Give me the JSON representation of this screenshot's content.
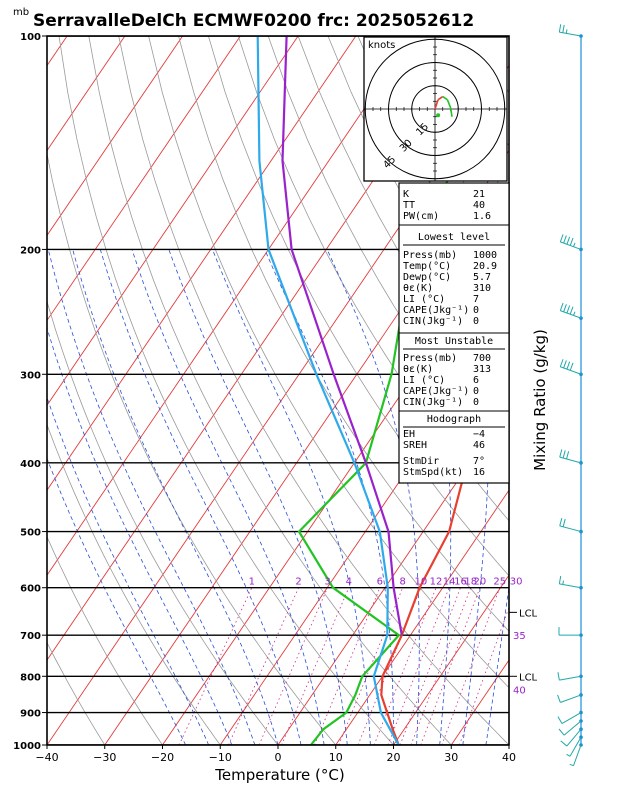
{
  "chart_data": {
    "type": "line",
    "title": "SerravalleDelCh ECMWF0200 frc: 2025052612",
    "pressure_unit": "mb",
    "xlabel": "Temperature (°C)",
    "right_label": "Mixing Ratio (g/kg)",
    "xlim": [
      -40,
      40
    ],
    "ylim": [
      1000,
      100
    ],
    "x_ticks": [
      "−40",
      "−30",
      "−20",
      "−10",
      "0",
      "10",
      "20",
      "30",
      "40"
    ],
    "p_levels": [
      100,
      200,
      300,
      400,
      500,
      600,
      700,
      800,
      900,
      1000
    ],
    "p_labels": [
      "100",
      "200",
      "300",
      "400",
      "500",
      "600",
      "700",
      "800",
      "900",
      "1000"
    ],
    "mixing_ratio_labels": [
      "1",
      "2",
      "3",
      "4",
      "6",
      "8",
      "10",
      "12",
      "14",
      "16",
      "18",
      "20",
      "25",
      "30"
    ],
    "mixing_ratio_values": [
      1,
      2,
      3,
      4,
      6,
      8,
      10,
      12,
      14,
      16,
      18,
      20,
      25,
      30
    ],
    "right_markers": [
      {
        "p": 650,
        "label": "LCL"
      },
      {
        "p": 700,
        "label": "35"
      },
      {
        "p": 800,
        "label": "LCL"
      },
      {
        "p": 835,
        "label": "40"
      }
    ],
    "series": [
      {
        "name": "",
        "color": "#e84030",
        "points": [
          [
            1000,
            20.9
          ],
          [
            950,
            18
          ],
          [
            850,
            12
          ],
          [
            800,
            10
          ],
          [
            700,
            8.5
          ],
          [
            600,
            6
          ],
          [
            500,
            4.5
          ],
          [
            400,
            -0.5
          ],
          [
            300,
            -12
          ],
          [
            250,
            -19
          ],
          [
            220,
            -19
          ],
          [
            200,
            -17
          ],
          [
            150,
            -10
          ],
          [
            100,
            -3
          ]
        ]
      },
      {
        "name": "",
        "color": "#22c322",
        "points": [
          [
            1000,
            5.7
          ],
          [
            950,
            6
          ],
          [
            900,
            8
          ],
          [
            850,
            7.5
          ],
          [
            800,
            6.5
          ],
          [
            700,
            8
          ],
          [
            600,
            -9
          ],
          [
            500,
            -21.5
          ],
          [
            400,
            -18
          ],
          [
            300,
            -24
          ],
          [
            250,
            -29
          ],
          [
            200,
            -34
          ],
          [
            150,
            -38
          ],
          [
            100,
            -47
          ]
        ]
      },
      {
        "name": "",
        "color": "#2eaaea",
        "points": [
          [
            1000,
            20.9
          ],
          [
            900,
            14
          ],
          [
            800,
            8.5
          ],
          [
            700,
            6
          ],
          [
            600,
            0.5
          ],
          [
            500,
            -7.5
          ],
          [
            400,
            -20
          ],
          [
            300,
            -37
          ],
          [
            200,
            -60
          ],
          [
            150,
            -72
          ],
          [
            100,
            -87
          ]
        ]
      },
      {
        "name": "",
        "color": "#9a22cc",
        "points": [
          [
            700,
            8.5
          ],
          [
            600,
            1.5
          ],
          [
            500,
            -6
          ],
          [
            400,
            -18
          ],
          [
            300,
            -34
          ],
          [
            200,
            -56
          ],
          [
            150,
            -68
          ],
          [
            100,
            -82
          ]
        ]
      }
    ],
    "wind_barbs": [
      {
        "p": 1000,
        "dir": 200,
        "kt": 5
      },
      {
        "p": 975,
        "dir": 210,
        "kt": 8
      },
      {
        "p": 950,
        "dir": 220,
        "kt": 10
      },
      {
        "p": 925,
        "dir": 230,
        "kt": 10
      },
      {
        "p": 900,
        "dir": 240,
        "kt": 12
      },
      {
        "p": 850,
        "dir": 250,
        "kt": 12
      },
      {
        "p": 800,
        "dir": 260,
        "kt": 14
      },
      {
        "p": 700,
        "dir": 270,
        "kt": 12
      },
      {
        "p": 600,
        "dir": 280,
        "kt": 15
      },
      {
        "p": 500,
        "dir": 285,
        "kt": 20
      },
      {
        "p": 400,
        "dir": 285,
        "kt": 30
      },
      {
        "p": 300,
        "dir": 290,
        "kt": 40
      },
      {
        "p": 250,
        "dir": 290,
        "kt": 45
      },
      {
        "p": 200,
        "dir": 290,
        "kt": 45
      },
      {
        "p": 100,
        "dir": 280,
        "kt": 25
      }
    ]
  },
  "hodograph": {
    "unit": "knots",
    "ring_labels": [
      "15",
      "30",
      "45"
    ],
    "ring_values": [
      15,
      30,
      45
    ],
    "trace": [
      [
        0,
        0
      ],
      [
        2,
        6
      ],
      [
        5,
        8
      ],
      [
        8,
        6
      ],
      [
        10,
        1
      ],
      [
        11,
        -5
      ]
    ],
    "storm_motion": [
      2,
      -4
    ]
  },
  "indices": {
    "top": [
      {
        "label": "K",
        "value": "21"
      },
      {
        "label": "TT",
        "value": "40"
      },
      {
        "label": "PW(cm)",
        "value": "1.6"
      }
    ],
    "lowest_title": "Lowest level",
    "lowest": [
      {
        "label": "Press(mb)",
        "value": "1000"
      },
      {
        "label": "Temp(°C)",
        "value": "20.9"
      },
      {
        "label": "Dewp(°C)",
        "value": "5.7"
      },
      {
        "label": "θε(K)",
        "value": "310"
      },
      {
        "label": "LI (°C)",
        "value": "7"
      },
      {
        "label": "CAPE(Jkg⁻¹)",
        "value": "0"
      },
      {
        "label": "CIN(Jkg⁻¹)",
        "value": "0"
      }
    ],
    "unstable_title": "Most Unstable",
    "unstable": [
      {
        "label": "Press(mb)",
        "value": "700"
      },
      {
        "label": "θε(K)",
        "value": "313"
      },
      {
        "label": "LI (°C)",
        "value": "6"
      },
      {
        "label": "CAPE(Jkg⁻¹)",
        "value": "0"
      },
      {
        "label": "CIN(Jkg⁻¹)",
        "value": "0"
      }
    ],
    "hodo_title": "Hodograph",
    "hodo": [
      {
        "label": "EH",
        "value": "−4"
      },
      {
        "label": "SREH",
        "value": "46"
      }
    ],
    "storm": [
      {
        "label": "StmDir",
        "value": "7°"
      },
      {
        "label": "StmSpd(kt)",
        "value": "16"
      }
    ]
  },
  "colors": {
    "isotherm": "#e23b3b",
    "dry_adiabat": "#9a9a9a",
    "moist_adiabat": "#2a4ed8",
    "mixing_ratio": "#cc2a88",
    "mixing_label": "#9a22cc",
    "wind_staff": "#1a8fd8",
    "barb": "#22a8a8"
  }
}
